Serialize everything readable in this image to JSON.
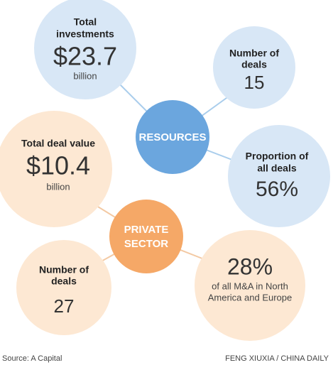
{
  "resources": {
    "hub": "RESOURCES",
    "nodes": [
      {
        "label": [
          "Total",
          "investments"
        ],
        "value": "$23.7",
        "unit": "billion"
      },
      {
        "label": [
          "Number of",
          "deals"
        ],
        "value": "15"
      },
      {
        "label": [
          "Proportion of",
          "all deals"
        ],
        "value": "56%"
      }
    ]
  },
  "private_sector": {
    "hub": [
      "PRIVATE",
      "SECTOR"
    ],
    "nodes": [
      {
        "label": [
          "Total deal value"
        ],
        "value": "$10.4",
        "unit": "billion"
      },
      {
        "label": [
          "Number of",
          "deals"
        ],
        "value": "27"
      },
      {
        "value": "28%",
        "note": [
          "of all M&A in North",
          "America and Europe"
        ]
      }
    ]
  },
  "source": "Source: A Capital",
  "credit": "FENG XIUXIA / CHINA DAILY"
}
